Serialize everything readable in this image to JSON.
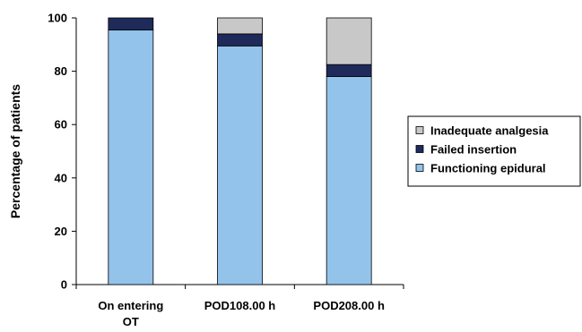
{
  "chart_data": {
    "type": "bar",
    "stacked": true,
    "categories": [
      [
        "On entering",
        "OT"
      ],
      [
        "POD108.00 h"
      ],
      [
        "POD208.00 h"
      ]
    ],
    "series": [
      {
        "name": "Functioning epidural",
        "values": [
          95.5,
          89.5,
          78
        ],
        "color": "#93c3ea"
      },
      {
        "name": "Failed insertion",
        "values": [
          4.5,
          4.5,
          4.5
        ],
        "color": "#1f2a5a"
      },
      {
        "name": "Inadequate analgesia",
        "values": [
          0,
          6,
          17.5
        ],
        "color": "#c8c8c8"
      }
    ],
    "ylabel": "Percentage of patients",
    "xlabel": "",
    "ylim": [
      0,
      100
    ],
    "yticks": [
      0,
      20,
      40,
      60,
      80,
      100
    ],
    "grid": false,
    "legend_position": "right"
  }
}
